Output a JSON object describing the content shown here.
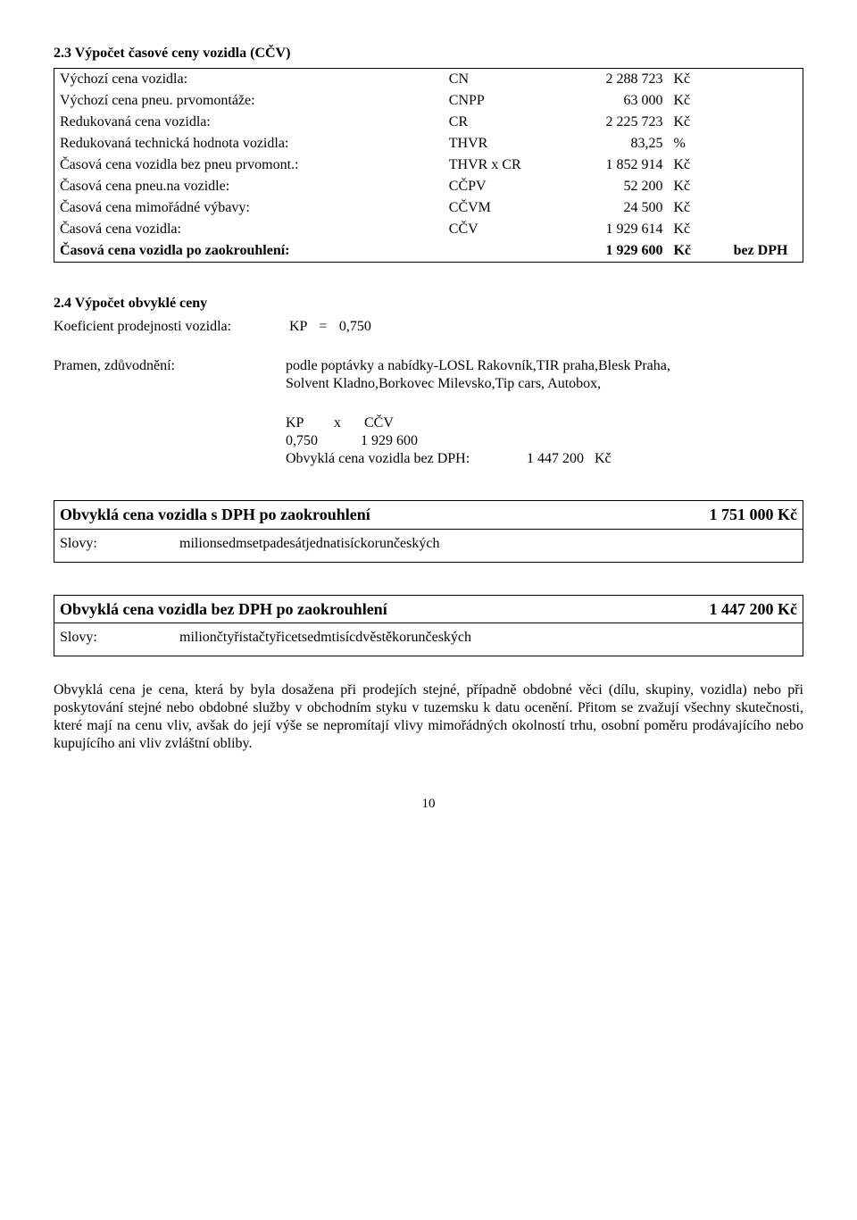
{
  "section23": {
    "title": "2.3 Výpočet časové ceny vozidla (CČV)",
    "rows": [
      {
        "label": "Výchozí cena vozidla:",
        "code": "CN",
        "value": "2 288 723",
        "unit": "Kč"
      },
      {
        "label": "Výchozí cena pneu. prvomontáže:",
        "code": "CNPP",
        "value": "63 000",
        "unit": "Kč"
      },
      {
        "label": "Redukovaná cena vozidla:",
        "code": "CR",
        "value": "2 225 723",
        "unit": "Kč"
      },
      {
        "label": "Redukovaná technická hodnota vozidla:",
        "code": "THVR",
        "value": "83,25",
        "unit": "%"
      },
      {
        "label": "Časová cena vozidla bez pneu prvomont.:",
        "code": "THVR  x  CR",
        "value": "1 852 914",
        "unit": "Kč"
      },
      {
        "label": "Časová cena pneu.na vozidle:",
        "code": "CČPV",
        "value": "52 200",
        "unit": "Kč"
      },
      {
        "label": "Časová cena mimořádné výbavy:",
        "code": "CČVM",
        "value": "24 500",
        "unit": "Kč"
      },
      {
        "label": "Časová cena vozidla:",
        "code": "CČV",
        "value": "1 929 614",
        "unit": "Kč"
      }
    ],
    "boldRow": {
      "label": "Časová cena vozidla po zaokrouhlení:",
      "code": "",
      "value": "1 929 600",
      "unit": "Kč",
      "extra": "bez DPH"
    }
  },
  "section24": {
    "title": "2.4 Výpočet obvyklé ceny",
    "kpLabel": "Koeficient prodejnosti vozidla:",
    "kpCode": "KP",
    "kpEq": "=",
    "kpValue": "0,750",
    "pramenLabel": "Pramen, zdůvodnění:",
    "pramenText1": "podle poptávky a nabídky-LOSL Rakovník,TIR praha,Blesk Praha,",
    "pramenText2": "Solvent Kladno,Borkovec Milevsko,Tip cars, Autobox,",
    "formulaLabel1": "KP",
    "formulaX": "x",
    "formulaLabel2": "CČV",
    "formulaV1": "0,750",
    "formulaV2": "1 929 600",
    "obvyklaLabel": "Obvyklá cena vozidla bez DPH:",
    "obvyklaValue": "1 447 200",
    "obvyklaUnit": "Kč"
  },
  "resultDph": {
    "headline": "Obvyklá cena vozidla s DPH po zaokrouhlení",
    "value": "1 751 000 Kč",
    "slovyLabel": "Slovy:",
    "slovy": "milionsedmsetpadesátjednatisíckorunčeských"
  },
  "resultBez": {
    "headline": "Obvyklá cena vozidla bez DPH po zaokrouhlení",
    "value": "1 447 200 Kč",
    "slovyLabel": "Slovy:",
    "slovy": "miliončtyřistačtyřicetsedmtisícdvěstěkorunčeských"
  },
  "paragraph": "Obvyklá cena je cena, která by byla dosažena při prodejích stejné, případně obdobné věci (dílu, skupiny, vozidla) nebo při poskytování stejné nebo obdobné služby v obchodním styku v tuzemsku k datu ocenění. Přitom se zvažují všechny skutečnosti, které mají na cenu vliv, avšak do její výše se nepromítají vlivy mimořádných okolností trhu, osobní poměru prodávajícího nebo kupujícího ani vliv zvláštní obliby.",
  "pageNum": "10"
}
